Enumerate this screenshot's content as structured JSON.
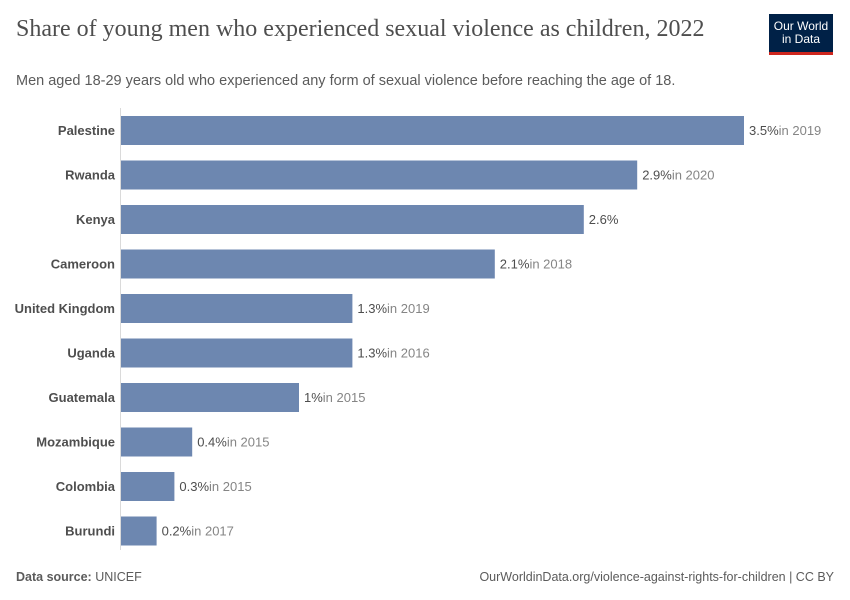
{
  "title": "Share of young men who experienced sexual violence as children, 2022",
  "subtitle": "Men aged 18-29 years old who experienced any form of sexual violence before reaching the age of 18.",
  "logo": {
    "line1": "Our World",
    "line2": "in Data"
  },
  "footer": {
    "source_label": "Data source:",
    "source": "UNICEF",
    "url": "OurWorldinData.org/violence-against-rights-for-children | CC BY"
  },
  "colors": {
    "bar": "#6d87b0",
    "label": "#4e4e4e",
    "year": "#858585"
  },
  "chart_data": {
    "type": "bar",
    "orientation": "horizontal",
    "title": "Share of young men who experienced sexual violence as children, 2022",
    "xlim": [
      0,
      3.5
    ],
    "unit": "%",
    "categories": [
      "Palestine",
      "Rwanda",
      "Kenya",
      "Cameroon",
      "United Kingdom",
      "Uganda",
      "Guatemala",
      "Mozambique",
      "Colombia",
      "Burundi"
    ],
    "values": [
      3.5,
      2.9,
      2.6,
      2.1,
      1.3,
      1.3,
      1,
      0.4,
      0.3,
      0.2
    ],
    "value_labels": [
      "3.5%",
      "2.9%",
      "2.6%",
      "2.1%",
      "1.3%",
      "1.3%",
      "1%",
      "0.4%",
      "0.3%",
      "0.2%"
    ],
    "year_notes": [
      "in 2019",
      "in 2020",
      "",
      "in 2018",
      "in 2019",
      "in 2016",
      "in 2015",
      "in 2015",
      "in 2015",
      "in 2017"
    ]
  }
}
